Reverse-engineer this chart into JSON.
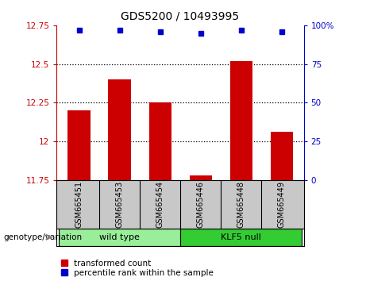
{
  "title": "GDS5200 / 10493995",
  "samples": [
    "GSM665451",
    "GSM665453",
    "GSM665454",
    "GSM665446",
    "GSM665448",
    "GSM665449"
  ],
  "transformed_counts": [
    12.2,
    12.4,
    12.25,
    11.78,
    12.52,
    12.06
  ],
  "percentile_ranks": [
    97,
    97,
    96,
    95,
    97,
    96
  ],
  "ylim_left": [
    11.75,
    12.75
  ],
  "ylim_right": [
    0,
    100
  ],
  "yticks_left": [
    11.75,
    12.0,
    12.25,
    12.5,
    12.75
  ],
  "ytick_labels_left": [
    "11.75",
    "12",
    "12.25",
    "12.5",
    "12.75"
  ],
  "yticks_right": [
    0,
    25,
    50,
    75,
    100
  ],
  "ytick_labels_right": [
    "0",
    "25",
    "50",
    "75",
    "100%"
  ],
  "bar_color": "#cc0000",
  "dot_color": "#0000cc",
  "groups": [
    {
      "label": "wild type",
      "indices": [
        0,
        1,
        2
      ],
      "color": "#99ee99"
    },
    {
      "label": "KLF5 null",
      "indices": [
        3,
        4,
        5
      ],
      "color": "#33cc33"
    }
  ],
  "group_row_label": "genotype/variation",
  "legend_items": [
    {
      "label": "transformed count",
      "color": "#cc0000"
    },
    {
      "label": "percentile rank within the sample",
      "color": "#0000cc"
    }
  ],
  "gridline_color": "#000000",
  "background_color": "#ffffff",
  "label_area_color": "#c8c8c8",
  "bar_baseline": 11.75
}
